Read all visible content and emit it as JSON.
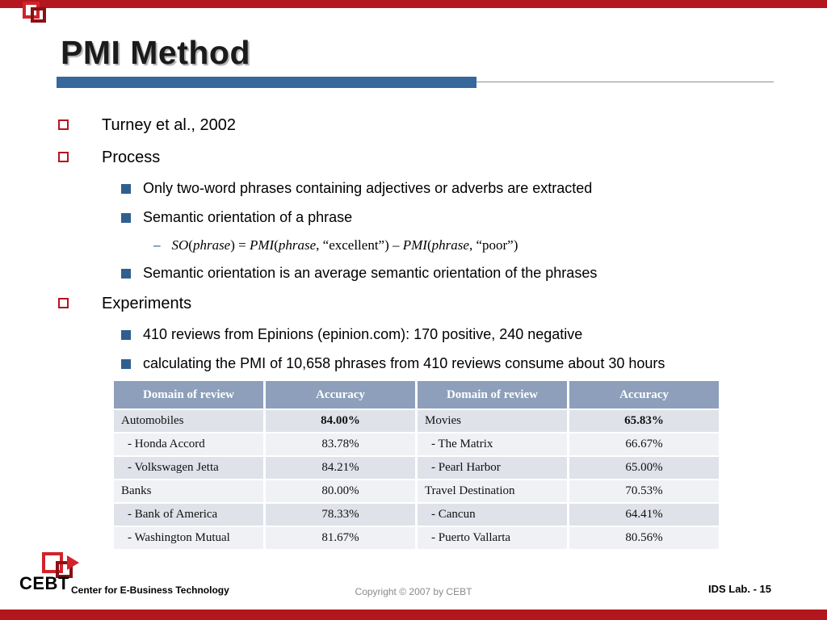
{
  "slide": {
    "title": "PMI Method"
  },
  "bullets": [
    {
      "level": 1,
      "text": "Turney et al., 2002"
    },
    {
      "level": 1,
      "text": "Process"
    },
    {
      "level": 2,
      "text": "Only two-word phrases containing adjectives or adverbs are extracted"
    },
    {
      "level": 2,
      "text": "Semantic orientation of a phrase"
    },
    {
      "level": 3,
      "parts": [
        {
          "t": "SO",
          "i": true
        },
        {
          "t": "("
        },
        {
          "t": "phrase",
          "i": true
        },
        {
          "t": ") = "
        },
        {
          "t": "PMI",
          "i": true
        },
        {
          "t": "("
        },
        {
          "t": "phrase",
          "i": true
        },
        {
          "t": ", “excellent”) – "
        },
        {
          "t": "PMI",
          "i": true
        },
        {
          "t": "("
        },
        {
          "t": "phrase",
          "i": true
        },
        {
          "t": ", “poor”)"
        }
      ]
    },
    {
      "level": 2,
      "text": "Semantic orientation is an average semantic orientation of the phrases"
    },
    {
      "level": 1,
      "text": "Experiments"
    },
    {
      "level": 2,
      "text": "410 reviews from Epinions (epinion.com): 170 positive, 240 negative"
    },
    {
      "level": 2,
      "text": "calculating the PMI of 10,658 phrases from 410 reviews consume about 30 hours"
    }
  ],
  "table": {
    "headers": [
      "Domain of review",
      "Accuracy",
      "Domain of review",
      "Accuracy"
    ],
    "rows": [
      {
        "cells": [
          "Automobiles",
          "84.00%",
          "Movies",
          "65.83%"
        ],
        "accuracy_bold": true
      },
      {
        "cells": [
          "- Honda Accord",
          "83.78%",
          "- The Matrix",
          "66.67%"
        ],
        "sub": true
      },
      {
        "cells": [
          "- Volkswagen Jetta",
          "84.21%",
          "- Pearl Harbor",
          "65.00%"
        ],
        "sub": true
      },
      {
        "cells": [
          "Banks",
          "80.00%",
          "Travel Destination",
          "70.53%"
        ]
      },
      {
        "cells": [
          "- Bank of America",
          "78.33%",
          "- Cancun",
          "64.41%"
        ],
        "sub": true
      },
      {
        "cells": [
          "- Washington Mutual",
          "81.67%",
          "- Puerto Vallarta",
          "80.56%"
        ],
        "sub": true
      }
    ]
  },
  "footer": {
    "logo_text": "CEBT",
    "org": "Center for E-Business Technology",
    "copyright": "Copyright © 2007 by CEBT",
    "page": "IDS Lab. - 15"
  },
  "colors": {
    "bar_red": "#b4161d",
    "accent_blue": "#36689c",
    "table_header": "#8d9fba",
    "row_dark": "#dfe2e9",
    "row_light": "#eff1f5"
  }
}
